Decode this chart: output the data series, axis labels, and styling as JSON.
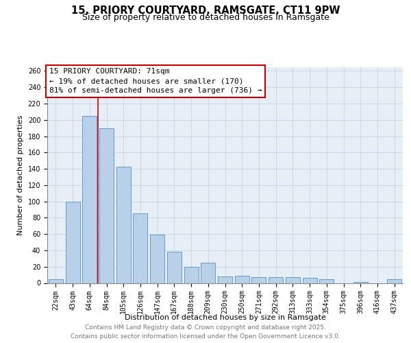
{
  "title": "15, PRIORY COURTYARD, RAMSGATE, CT11 9PW",
  "subtitle": "Size of property relative to detached houses in Ramsgate",
  "xlabel": "Distribution of detached houses by size in Ramsgate",
  "ylabel": "Number of detached properties",
  "categories": [
    "22sqm",
    "43sqm",
    "64sqm",
    "84sqm",
    "105sqm",
    "126sqm",
    "147sqm",
    "167sqm",
    "188sqm",
    "209sqm",
    "230sqm",
    "250sqm",
    "271sqm",
    "292sqm",
    "313sqm",
    "333sqm",
    "354sqm",
    "375sqm",
    "396sqm",
    "416sqm",
    "437sqm"
  ],
  "values": [
    5,
    100,
    205,
    190,
    143,
    85,
    59,
    38,
    20,
    25,
    8,
    9,
    7,
    7,
    7,
    6,
    5,
    0,
    1,
    0,
    5
  ],
  "bar_color": "#b8d0e8",
  "bar_edge_color": "#6699cc",
  "grid_color": "#c8d8e8",
  "background_color": "#e8eef5",
  "annotation_line1": "15 PRIORY COURTYARD: 71sqm",
  "annotation_line2": "← 19% of detached houses are smaller (170)",
  "annotation_line3": "81% of semi-detached houses are larger (736) →",
  "annotation_box_color": "#cc0000",
  "vline_x": 2.5,
  "ylim": [
    0,
    265
  ],
  "yticks": [
    0,
    20,
    40,
    60,
    80,
    100,
    120,
    140,
    160,
    180,
    200,
    220,
    240,
    260
  ],
  "footer_line1": "Contains HM Land Registry data © Crown copyright and database right 2025.",
  "footer_line2": "Contains public sector information licensed under the Open Government Licence v3.0.",
  "title_fontsize": 10.5,
  "subtitle_fontsize": 9,
  "axis_label_fontsize": 8,
  "tick_fontsize": 7,
  "annotation_fontsize": 8,
  "footer_fontsize": 6.5
}
